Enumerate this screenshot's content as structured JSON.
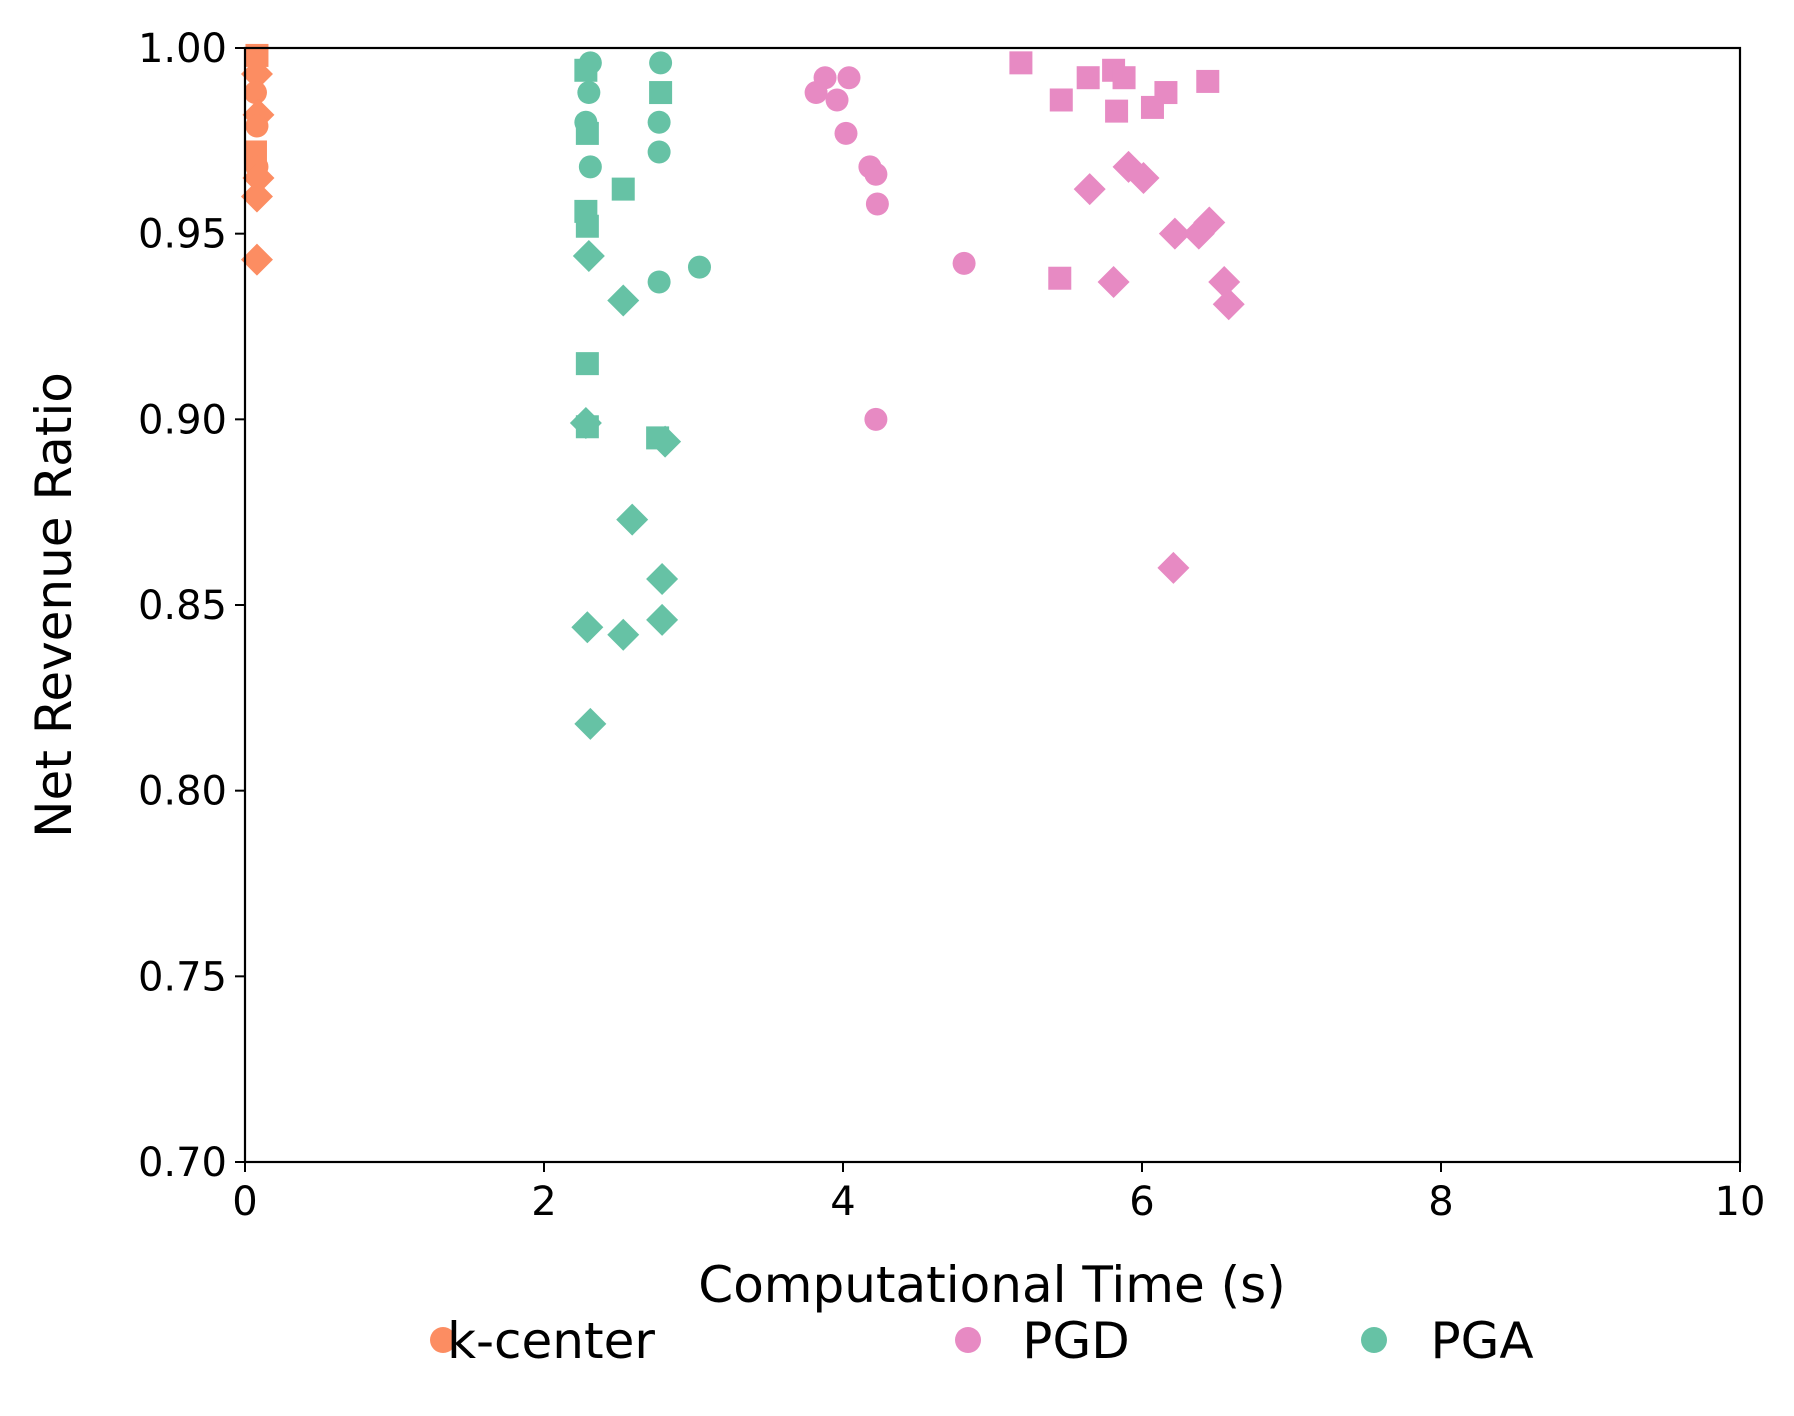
{
  "chart_data": {
    "type": "scatter",
    "title": "",
    "xlabel": "Computational Time (s)",
    "ylabel": "Net Revenue Ratio",
    "xlim": [
      0,
      10
    ],
    "ylim": [
      0.7,
      1.0
    ],
    "xticks": [
      0,
      2,
      4,
      6,
      8,
      10
    ],
    "xtick_labels": [
      "0",
      "2",
      "4",
      "6",
      "8",
      "10"
    ],
    "yticks": [
      0.7,
      0.75,
      0.8,
      0.85,
      0.9,
      0.95,
      1.0
    ],
    "ytick_labels": [
      "0.70",
      "0.75",
      "0.80",
      "0.85",
      "0.90",
      "0.95",
      "1.00"
    ],
    "grid": false,
    "legend": {
      "placement": "bottom-center",
      "entries": [
        {
          "label": "k-center",
          "color": "#fc8d62"
        },
        {
          "label": "PGD",
          "color": "#e78ac3"
        },
        {
          "label": "PGA",
          "color": "#66c2a5"
        }
      ]
    },
    "series": [
      {
        "name": "k-center",
        "color": "#fc8d62",
        "points": [
          {
            "x": 0.08,
            "y": 0.998,
            "m": "square"
          },
          {
            "x": 0.08,
            "y": 0.993,
            "m": "diamond"
          },
          {
            "x": 0.07,
            "y": 0.988,
            "m": "circle"
          },
          {
            "x": 0.09,
            "y": 0.982,
            "m": "diamond"
          },
          {
            "x": 0.08,
            "y": 0.979,
            "m": "circle"
          },
          {
            "x": 0.07,
            "y": 0.972,
            "m": "square"
          },
          {
            "x": 0.08,
            "y": 0.968,
            "m": "circle"
          },
          {
            "x": 0.09,
            "y": 0.965,
            "m": "diamond"
          },
          {
            "x": 0.08,
            "y": 0.96,
            "m": "diamond"
          },
          {
            "x": 0.08,
            "y": 0.943,
            "m": "diamond"
          }
        ]
      },
      {
        "name": "PGD",
        "color": "#e78ac3",
        "points": [
          {
            "x": 3.88,
            "y": 0.992,
            "m": "circle"
          },
          {
            "x": 4.04,
            "y": 0.992,
            "m": "circle"
          },
          {
            "x": 3.82,
            "y": 0.988,
            "m": "circle"
          },
          {
            "x": 3.96,
            "y": 0.986,
            "m": "circle"
          },
          {
            "x": 4.02,
            "y": 0.977,
            "m": "circle"
          },
          {
            "x": 4.18,
            "y": 0.968,
            "m": "circle"
          },
          {
            "x": 4.22,
            "y": 0.966,
            "m": "circle"
          },
          {
            "x": 4.23,
            "y": 0.958,
            "m": "circle"
          },
          {
            "x": 4.81,
            "y": 0.942,
            "m": "circle"
          },
          {
            "x": 4.22,
            "y": 0.9,
            "m": "circle"
          },
          {
            "x": 5.19,
            "y": 0.996,
            "m": "square"
          },
          {
            "x": 5.81,
            "y": 0.994,
            "m": "square"
          },
          {
            "x": 5.64,
            "y": 0.992,
            "m": "square"
          },
          {
            "x": 5.88,
            "y": 0.992,
            "m": "square"
          },
          {
            "x": 6.44,
            "y": 0.991,
            "m": "square"
          },
          {
            "x": 6.16,
            "y": 0.988,
            "m": "square"
          },
          {
            "x": 5.46,
            "y": 0.986,
            "m": "square"
          },
          {
            "x": 6.07,
            "y": 0.984,
            "m": "square"
          },
          {
            "x": 5.83,
            "y": 0.983,
            "m": "square"
          },
          {
            "x": 5.45,
            "y": 0.938,
            "m": "square"
          },
          {
            "x": 5.91,
            "y": 0.968,
            "m": "diamond"
          },
          {
            "x": 6.01,
            "y": 0.965,
            "m": "diamond"
          },
          {
            "x": 5.65,
            "y": 0.962,
            "m": "diamond"
          },
          {
            "x": 6.45,
            "y": 0.953,
            "m": "diamond"
          },
          {
            "x": 6.22,
            "y": 0.95,
            "m": "diamond"
          },
          {
            "x": 6.38,
            "y": 0.95,
            "m": "diamond"
          },
          {
            "x": 5.81,
            "y": 0.937,
            "m": "diamond"
          },
          {
            "x": 6.55,
            "y": 0.937,
            "m": "diamond"
          },
          {
            "x": 6.58,
            "y": 0.931,
            "m": "diamond"
          },
          {
            "x": 6.21,
            "y": 0.86,
            "m": "diamond"
          }
        ]
      },
      {
        "name": "PGA",
        "color": "#66c2a5",
        "points": [
          {
            "x": 2.31,
            "y": 0.996,
            "m": "circle"
          },
          {
            "x": 2.78,
            "y": 0.996,
            "m": "circle"
          },
          {
            "x": 2.3,
            "y": 0.988,
            "m": "circle"
          },
          {
            "x": 2.28,
            "y": 0.98,
            "m": "circle"
          },
          {
            "x": 2.77,
            "y": 0.98,
            "m": "circle"
          },
          {
            "x": 2.77,
            "y": 0.972,
            "m": "circle"
          },
          {
            "x": 2.31,
            "y": 0.968,
            "m": "circle"
          },
          {
            "x": 3.04,
            "y": 0.941,
            "m": "circle"
          },
          {
            "x": 2.77,
            "y": 0.937,
            "m": "circle"
          },
          {
            "x": 2.28,
            "y": 0.994,
            "m": "square"
          },
          {
            "x": 2.78,
            "y": 0.988,
            "m": "square"
          },
          {
            "x": 2.29,
            "y": 0.977,
            "m": "square"
          },
          {
            "x": 2.53,
            "y": 0.962,
            "m": "square"
          },
          {
            "x": 2.28,
            "y": 0.956,
            "m": "square"
          },
          {
            "x": 2.29,
            "y": 0.952,
            "m": "square"
          },
          {
            "x": 2.29,
            "y": 0.915,
            "m": "square"
          },
          {
            "x": 2.29,
            "y": 0.898,
            "m": "square"
          },
          {
            "x": 2.76,
            "y": 0.895,
            "m": "square"
          },
          {
            "x": 2.3,
            "y": 0.944,
            "m": "diamond"
          },
          {
            "x": 2.53,
            "y": 0.932,
            "m": "diamond"
          },
          {
            "x": 2.28,
            "y": 0.899,
            "m": "diamond"
          },
          {
            "x": 2.81,
            "y": 0.894,
            "m": "diamond"
          },
          {
            "x": 2.59,
            "y": 0.873,
            "m": "diamond"
          },
          {
            "x": 2.79,
            "y": 0.857,
            "m": "diamond"
          },
          {
            "x": 2.79,
            "y": 0.846,
            "m": "diamond"
          },
          {
            "x": 2.29,
            "y": 0.844,
            "m": "diamond"
          },
          {
            "x": 2.53,
            "y": 0.842,
            "m": "diamond"
          },
          {
            "x": 2.31,
            "y": 0.818,
            "m": "diamond"
          }
        ]
      }
    ]
  }
}
